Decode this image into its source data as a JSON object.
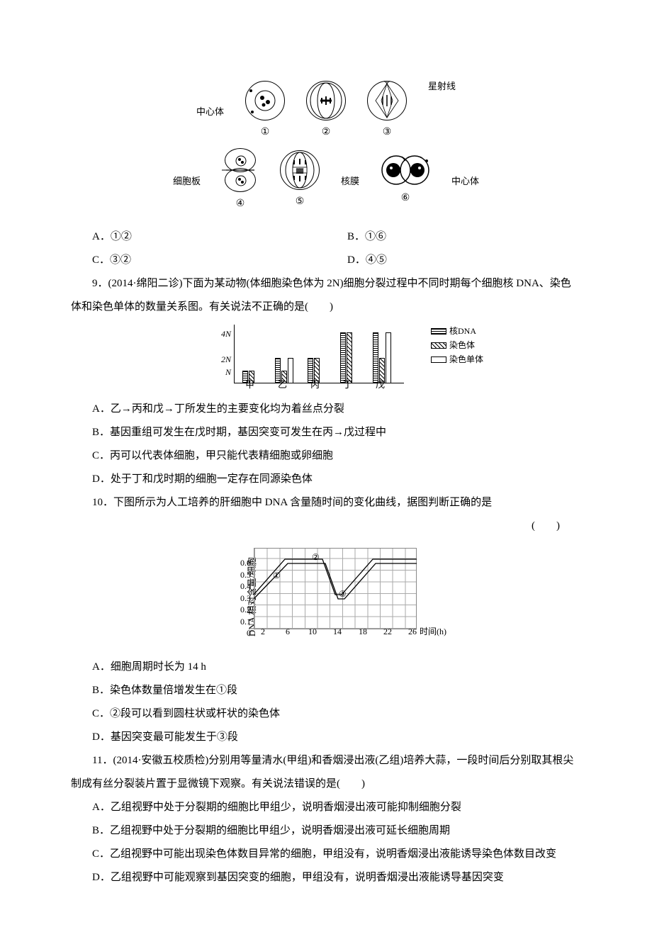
{
  "figure1": {
    "labels": {
      "centrosome": "中心体",
      "aster": "星射线",
      "cellplate": "细胞板",
      "nuclear_membrane": "核膜"
    },
    "numbers": [
      "①",
      "②",
      "③",
      "④",
      "⑤",
      "⑥"
    ]
  },
  "q8_options": {
    "A": "A．①②",
    "B": "B．①⑥",
    "C": "C．③②",
    "D": "D．④⑤"
  },
  "q9": {
    "intro": "9．(2014·绵阳二诊)下面为某动物(体细胞染色体为 2N)细胞分裂过程中不同时期每个细胞核 DNA、染色体和染色单体的数量关系图。有关说法不正确的是(　　)",
    "chart": {
      "type": "bar",
      "yticks": [
        "4N",
        "2N",
        "N"
      ],
      "categories": [
        "甲",
        "乙",
        "丙",
        "丁",
        "戊"
      ],
      "legend": [
        {
          "label": "核DNA",
          "style": "hatch"
        },
        {
          "label": "染色体",
          "style": "diag"
        },
        {
          "label": "染色单体",
          "style": "white"
        }
      ],
      "groups": [
        {
          "cat": "甲",
          "bars": [
            {
              "h": 1,
              "style": "hatch"
            },
            {
              "h": 1,
              "style": "diag"
            }
          ]
        },
        {
          "cat": "乙",
          "bars": [
            {
              "h": 2,
              "style": "hatch"
            },
            {
              "h": 1,
              "style": "diag"
            },
            {
              "h": 2,
              "style": "white"
            }
          ]
        },
        {
          "cat": "丙",
          "bars": [
            {
              "h": 2,
              "style": "hatch"
            },
            {
              "h": 2,
              "style": "diag"
            }
          ]
        },
        {
          "cat": "丁",
          "bars": [
            {
              "h": 4,
              "style": "hatch"
            },
            {
              "h": 4,
              "style": "diag"
            }
          ]
        },
        {
          "cat": "戊",
          "bars": [
            {
              "h": 4,
              "style": "hatch"
            },
            {
              "h": 2,
              "style": "diag"
            },
            {
              "h": 4,
              "style": "white"
            }
          ]
        }
      ],
      "unit_height": 18
    },
    "options": {
      "A": "A．乙→丙和戊→丁所发生的主要变化均为着丝点分裂",
      "B": "B．基因重组可发生在戊时期，基因突变可发生在丙→戊过程中",
      "C": "C．丙可以代表体细胞，甲只能代表精细胞或卵细胞",
      "D": "D．处于丁和戊时期的细胞一定存在同源染色体"
    }
  },
  "q10": {
    "intro": "10．下图所示为人工培养的肝细胞中 DNA 含量随时间的变化曲线，据图判断正确的是",
    "paren": "(　　)",
    "chart": {
      "type": "line",
      "ylabel": "DNA 相对含量/细胞",
      "yticks": [
        "0",
        "0.1",
        "0.2",
        "0.3",
        "0.4",
        "0.5",
        "0.6"
      ],
      "xticks": [
        "2",
        "6",
        "10",
        "14",
        "18",
        "22",
        "26"
      ],
      "xlabel": "时间(h)",
      "labels": [
        "①",
        "②",
        "③"
      ],
      "data_description": "Two parallel curves. Upper curve: rises from ~0.3 at t=0 to plateau 0.6 around t=5-11, drops to ~0.3 at t=13, rises again to ~0.6 by t=26. Lower curve offset ~0.03 below. ① over rising segment ~t=4, ② over plateau ~t=9, ③ over low segment ~t=15.",
      "grid_color": "#aaaaaa",
      "background_color": "#ffffff",
      "line_color": "#000000"
    },
    "options": {
      "A": "A．细胞周期时长为 14 h",
      "B": "B．染色体数量倍增发生在①段",
      "C": "C．②段可以看到圆柱状或杆状的染色体",
      "D": "D．基因突变最可能发生于③段"
    }
  },
  "q11": {
    "intro": "11．(2014·安徽五校质检)分别用等量清水(甲组)和香烟浸出液(乙组)培养大蒜，一段时间后分别取其根尖制成有丝分裂装片置于显微镜下观察。有关说法错误的是(　　)",
    "options": {
      "A": "A．乙组视野中处于分裂期的细胞比甲组少，说明香烟浸出液可能抑制细胞分裂",
      "B": "B．乙组视野中处于分裂期的细胞比甲组少，说明香烟浸出液可延长细胞周期",
      "C": "C．乙组视野中可能出现染色体数目异常的细胞，甲组没有，说明香烟浸出液能诱导染色体数目改变",
      "D": "D．乙组视野中可能观察到基因突变的细胞，甲组没有，说明香烟浸出液能诱导基因突变"
    }
  }
}
